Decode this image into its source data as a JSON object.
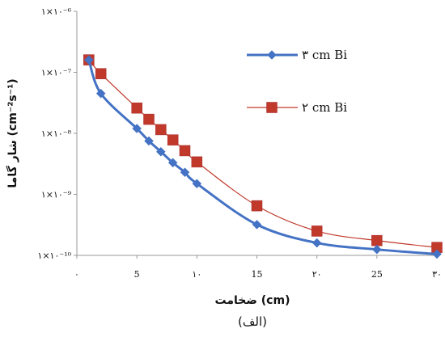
{
  "chart_data": {
    "type": "line",
    "title": "",
    "xlabel": "ضخامت (cm)",
    "ylabel": "شار گاما (cm⁻²s⁻¹)",
    "sublabel": "(الف)",
    "x_ticks": [
      {
        "value": 0,
        "label": "۰"
      },
      {
        "value": 5,
        "label": "5"
      },
      {
        "value": 10,
        "label": "۱۰"
      },
      {
        "value": 15,
        "label": "15"
      },
      {
        "value": 20,
        "label": "۲۰"
      },
      {
        "value": 25,
        "label": "25"
      },
      {
        "value": 30,
        "label": "۳۰"
      }
    ],
    "y_ticks": [
      {
        "value": 1e-06,
        "label": "۱×۱۰⁻⁶"
      },
      {
        "value": 1e-07,
        "label": "۱×۱۰⁻⁷"
      },
      {
        "value": 1e-08,
        "label": "۱×۱۰⁻⁸"
      },
      {
        "value": 1e-09,
        "label": "۱×۱۰⁻⁹"
      },
      {
        "value": 1e-10,
        "label": "۱×۱۰⁻¹⁰"
      }
    ],
    "xlim": [
      0,
      30
    ],
    "ylim": [
      1e-10,
      1e-06
    ],
    "y_scale": "log",
    "grid": false,
    "legend_position": "right",
    "series": [
      {
        "name": "۳ cm Bi",
        "color": "#4472c4",
        "marker": "diamond",
        "x": [
          1,
          2,
          5,
          6,
          7,
          8,
          9,
          10,
          15,
          20,
          25,
          30
        ],
        "y": [
          1.6e-07,
          4.5e-08,
          1.2e-08,
          7.5e-09,
          5e-09,
          3.3e-09,
          2.3e-09,
          1.5e-09,
          3.2e-10,
          1.6e-10,
          1.25e-10,
          1.05e-10
        ]
      },
      {
        "name": "۲ cm Bi",
        "color": "#c0392b",
        "marker": "square",
        "x": [
          1,
          2,
          5,
          6,
          7,
          8,
          9,
          10,
          15,
          20,
          25,
          30
        ],
        "y": [
          1.6e-07,
          9.5e-08,
          2.6e-08,
          1.7e-08,
          1.15e-08,
          7.8e-09,
          5.2e-09,
          3.4e-09,
          6.5e-10,
          2.5e-10,
          1.75e-10,
          1.35e-10
        ]
      }
    ]
  }
}
